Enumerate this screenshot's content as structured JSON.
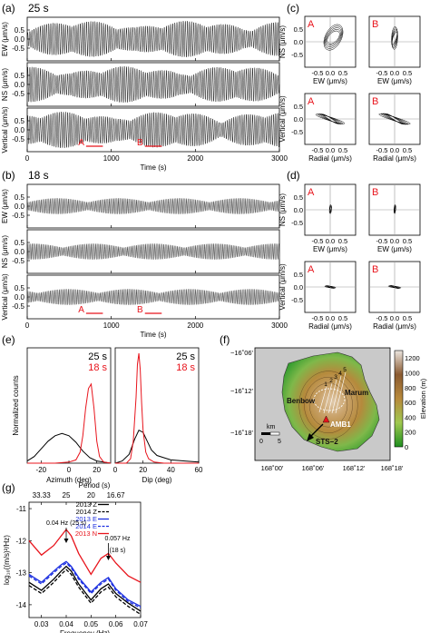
{
  "panel_labels": [
    "(a)",
    "(b)",
    "(c)",
    "(d)",
    "(e)",
    "(f)",
    "(g)"
  ],
  "panel_a": {
    "period_label": "25 s"
  },
  "panel_b": {
    "period_label": "18 s"
  },
  "colors": {
    "trace": "#000000",
    "waveform_18s": "#555555",
    "red": "#e8141c",
    "blue": "#1c2fe0",
    "water": "#c9c9c9"
  },
  "chart_data": [
    {
      "id": "a",
      "type": "line",
      "title": "25 s",
      "xlabel": "Time (s)",
      "xlim": [
        0,
        3000
      ],
      "xticks": [
        0,
        1000,
        2000,
        3000
      ],
      "rows": [
        {
          "ylabel": "EW (μm/s)",
          "ylim": [
            -1.2,
            1.2
          ],
          "yticks": [
            "0.5",
            "0.0",
            "-0.5"
          ]
        },
        {
          "ylabel": "NS (μm/s)",
          "ylim": [
            -1.2,
            1.2
          ],
          "yticks": [
            "0.5",
            "0.0",
            "-0.5"
          ]
        },
        {
          "ylabel": "Vertical (μm/s)",
          "ylim": [
            -1.2,
            1.2
          ],
          "yticks": [
            "0.5",
            "0.0",
            "-0.5"
          ]
        }
      ],
      "windows": [
        {
          "label": "A",
          "x": [
            700,
            900
          ]
        },
        {
          "label": "B",
          "x": [
            1400,
            1600
          ]
        }
      ],
      "period_s": 25
    },
    {
      "id": "b",
      "type": "line",
      "title": "18 s",
      "xlabel": "Time (s)",
      "xlim": [
        0,
        3000
      ],
      "xticks": [
        0,
        1000,
        2000,
        3000
      ],
      "rows": [
        {
          "ylabel": "EW (μm/s)",
          "ylim": [
            -1.2,
            1.2
          ],
          "yticks": [
            "0.5",
            "0.0",
            "-0.5"
          ]
        },
        {
          "ylabel": "NS (μm/s)",
          "ylim": [
            -1.2,
            1.2
          ],
          "yticks": [
            "0.5",
            "0.0",
            "-0.5"
          ]
        },
        {
          "ylabel": "Vertical (μm/s)",
          "ylim": [
            -1.2,
            1.2
          ],
          "yticks": [
            "0.5",
            "0.0",
            "-0.5"
          ]
        }
      ],
      "windows": [
        {
          "label": "A",
          "x": [
            700,
            900
          ]
        },
        {
          "label": "B",
          "x": [
            1400,
            1600
          ]
        }
      ],
      "period_s": 18
    },
    {
      "id": "c",
      "type": "scatter",
      "subplots": [
        {
          "label": "A",
          "xlabel": "EW (μm/s)",
          "ylabel": "NS (μm/s)",
          "xticks": [
            "-0.5",
            "0.0",
            "0.5"
          ],
          "yticks": [
            "0.5",
            "0.0",
            "-0.5"
          ],
          "lim": [
            -1,
            1
          ],
          "ellipse": {
            "a": 0.55,
            "b": 0.32,
            "angle_deg": 55,
            "cx": 0.25,
            "cy": 0.35
          }
        },
        {
          "label": "B",
          "xlabel": "EW (μm/s)",
          "ylabel": "",
          "xticks": [
            "-0.5",
            "0.0",
            "0.5"
          ],
          "yticks": [],
          "lim": [
            -1,
            1
          ],
          "ellipse": {
            "a": 0.45,
            "b": 0.12,
            "angle_deg": 80,
            "cx": 0.0,
            "cy": 0.3
          }
        },
        {
          "label": "A",
          "xlabel": "Radial (μm/s)",
          "ylabel": "Vertical (μm/s)",
          "xticks": [
            "-0.5",
            "0.0",
            "0.5"
          ],
          "yticks": [
            "0.5",
            "0.0",
            "-0.5"
          ],
          "lim": [
            -1,
            1
          ],
          "ellipse": {
            "a": 0.6,
            "b": 0.07,
            "angle_deg": -25,
            "cx": 0.0,
            "cy": 0.0
          }
        },
        {
          "label": "B",
          "xlabel": "Radial (μm/s)",
          "ylabel": "",
          "xticks": [
            "-0.5",
            "0.0",
            "0.5"
          ],
          "yticks": [],
          "lim": [
            -1,
            1
          ],
          "ellipse": {
            "a": 0.65,
            "b": 0.07,
            "angle_deg": -25,
            "cx": 0.0,
            "cy": 0.0
          }
        }
      ]
    },
    {
      "id": "d",
      "type": "scatter",
      "subplots": [
        {
          "label": "A",
          "xlabel": "EW (μm/s)",
          "ylabel": "NS (μm/s)",
          "xticks": [
            "-0.5",
            "0.0",
            "0.5"
          ],
          "yticks": [
            "0.5",
            "0.0",
            "-0.5"
          ],
          "lim": [
            -1,
            1
          ],
          "ellipse": {
            "a": 0.18,
            "b": 0.04,
            "angle_deg": 80,
            "cx": 0.02,
            "cy": 0.05
          }
        },
        {
          "label": "B",
          "xlabel": "EW (μm/s)",
          "ylabel": "",
          "xticks": [
            "-0.5",
            "0.0",
            "0.5"
          ],
          "yticks": [],
          "lim": [
            -1,
            1
          ],
          "ellipse": {
            "a": 0.18,
            "b": 0.03,
            "angle_deg": 80,
            "cx": 0.02,
            "cy": 0.05
          }
        },
        {
          "label": "A",
          "xlabel": "Radial (μm/s)",
          "ylabel": "Vertical (μm/s)",
          "xticks": [
            "-0.5",
            "0.0",
            "0.5"
          ],
          "yticks": [
            "0.5",
            "0.0",
            "-0.5"
          ],
          "lim": [
            -1,
            1
          ],
          "ellipse": {
            "a": 0.22,
            "b": 0.03,
            "angle_deg": -15,
            "cx": 0.0,
            "cy": 0.0
          }
        },
        {
          "label": "B",
          "xlabel": "Radial (μm/s)",
          "ylabel": "",
          "xticks": [
            "-0.5",
            "0.0",
            "0.5"
          ],
          "yticks": [],
          "lim": [
            -1,
            1
          ],
          "ellipse": {
            "a": 0.25,
            "b": 0.03,
            "angle_deg": -15,
            "cx": 0.0,
            "cy": 0.0
          }
        }
      ]
    },
    {
      "id": "e",
      "type": "line",
      "ylabel": "Normalized counts",
      "subplots": [
        {
          "xlabel": "Azimuth (deg)",
          "xlim": [
            -30,
            30
          ],
          "xticks": [
            -20,
            0,
            20
          ],
          "series": [
            {
              "name": "25 s",
              "color": "#000000",
              "x": [
                -30,
                -25,
                -20,
                -15,
                -10,
                -5,
                0,
                5,
                10,
                15,
                20,
                25,
                30
              ],
              "y": [
                0.02,
                0.06,
                0.13,
                0.2,
                0.25,
                0.27,
                0.25,
                0.19,
                0.11,
                0.05,
                0.02,
                0.01,
                0.0
              ]
            },
            {
              "name": "18 s",
              "color": "#e8141c",
              "x": [
                -30,
                -10,
                0,
                5,
                8,
                10,
                12,
                14,
                16,
                18,
                20,
                22,
                25,
                30
              ],
              "y": [
                0.0,
                0.0,
                0.01,
                0.03,
                0.1,
                0.25,
                0.5,
                0.68,
                0.72,
                0.5,
                0.2,
                0.06,
                0.01,
                0.0
              ]
            }
          ]
        },
        {
          "xlabel": "Dip (deg)",
          "xlim": [
            0,
            60
          ],
          "xticks": [
            0,
            20,
            40,
            60
          ],
          "series": [
            {
              "name": "25 s",
              "color": "#000000",
              "x": [
                0,
                5,
                10,
                14,
                17,
                20,
                23,
                26,
                30,
                35,
                40,
                50,
                60
              ],
              "y": [
                0.0,
                0.02,
                0.08,
                0.22,
                0.3,
                0.28,
                0.2,
                0.12,
                0.07,
                0.05,
                0.03,
                0.02,
                0.01
              ]
            },
            {
              "name": "18 s",
              "color": "#e8141c",
              "x": [
                0,
                8,
                11,
                13,
                15,
                16,
                17,
                18,
                19,
                20,
                22,
                24,
                28,
                35,
                60
              ],
              "y": [
                0.0,
                0.0,
                0.04,
                0.2,
                0.6,
                0.9,
                1.0,
                0.85,
                0.55,
                0.3,
                0.1,
                0.04,
                0.01,
                0.0,
                0.0
              ]
            }
          ]
        }
      ],
      "legend": [
        "25 s",
        "18 s"
      ]
    },
    {
      "id": "f",
      "type": "map",
      "xticks": [
        "168˚00'",
        "168˚06'",
        "168˚12'",
        "168˚18'"
      ],
      "yticks": [
        "−16˚06'",
        "−16˚12'",
        "−16˚18'"
      ],
      "labels": [
        "Benbow",
        "Marum",
        "AMB1",
        "STS−2"
      ],
      "contour_labels": [
        "1",
        "2",
        "3",
        "4",
        "5"
      ],
      "scalebar": {
        "unit": "km",
        "ticks": [
          "0",
          "5"
        ]
      },
      "colorbar": {
        "label": "Elevation (m)",
        "ticks": [
          1200,
          1000,
          800,
          600,
          400,
          200,
          0
        ],
        "range": [
          0,
          1300
        ]
      }
    },
    {
      "id": "g",
      "type": "line",
      "xlabel": "Frequency (Hz)",
      "ylabel": "log₁₀((m/s)²/Hz)",
      "top_axis_label": "Period (s)",
      "top_ticks": [
        "33.33",
        "25",
        "20",
        "16.67"
      ],
      "xlim": [
        0.025,
        0.07
      ],
      "ylim": [
        -14.4,
        -10.8
      ],
      "xticks": [
        0.03,
        0.04,
        0.05,
        0.06,
        0.07
      ],
      "yticks": [
        -11,
        -12,
        -13,
        -14
      ],
      "annotations": [
        {
          "text": "0.04 Hz (25 s)",
          "x": 0.04
        },
        {
          "text": "0.057 Hz",
          "sub": "(18 s)",
          "x": 0.057
        }
      ],
      "series": [
        {
          "name": "2013 Z",
          "color": "#000000",
          "dash": "solid",
          "x": [
            0.025,
            0.03,
            0.035,
            0.038,
            0.04,
            0.042,
            0.045,
            0.05,
            0.054,
            0.057,
            0.06,
            0.065,
            0.07
          ],
          "y": [
            -13.3,
            -13.55,
            -13.2,
            -12.95,
            -12.8,
            -12.95,
            -13.35,
            -13.85,
            -13.5,
            -13.35,
            -13.65,
            -13.95,
            -14.2
          ]
        },
        {
          "name": "2014 Z",
          "color": "#000000",
          "dash": "dash",
          "x": [
            0.025,
            0.03,
            0.035,
            0.038,
            0.04,
            0.042,
            0.045,
            0.05,
            0.054,
            0.057,
            0.06,
            0.065,
            0.07
          ],
          "y": [
            -13.4,
            -13.65,
            -13.3,
            -13.05,
            -12.9,
            -13.05,
            -13.45,
            -13.95,
            -13.6,
            -13.45,
            -13.75,
            -14.05,
            -14.3
          ]
        },
        {
          "name": "2013 E",
          "color": "#1c2fe0",
          "dash": "solid",
          "x": [
            0.025,
            0.03,
            0.035,
            0.038,
            0.04,
            0.042,
            0.045,
            0.05,
            0.054,
            0.057,
            0.06,
            0.065,
            0.07
          ],
          "y": [
            -13.05,
            -13.3,
            -12.95,
            -12.75,
            -12.65,
            -12.8,
            -13.15,
            -13.6,
            -13.3,
            -13.15,
            -13.5,
            -13.85,
            -14.05
          ]
        },
        {
          "name": "2014 E",
          "color": "#1c2fe0",
          "dash": "dash",
          "x": [
            0.025,
            0.03,
            0.035,
            0.038,
            0.04,
            0.042,
            0.045,
            0.05,
            0.054,
            0.057,
            0.06,
            0.065,
            0.07
          ],
          "y": [
            -13.1,
            -13.35,
            -13.0,
            -12.8,
            -12.7,
            -12.85,
            -13.2,
            -13.65,
            -13.35,
            -13.2,
            -13.55,
            -13.9,
            -14.1
          ]
        },
        {
          "name": "2013 N",
          "color": "#e8141c",
          "dash": "solid",
          "x": [
            0.025,
            0.03,
            0.035,
            0.038,
            0.04,
            0.042,
            0.045,
            0.05,
            0.054,
            0.057,
            0.06,
            0.065,
            0.07
          ],
          "y": [
            -12.0,
            -12.45,
            -12.15,
            -11.85,
            -11.65,
            -11.85,
            -12.4,
            -13.05,
            -12.55,
            -12.4,
            -12.7,
            -13.1,
            -13.3
          ]
        }
      ]
    }
  ]
}
